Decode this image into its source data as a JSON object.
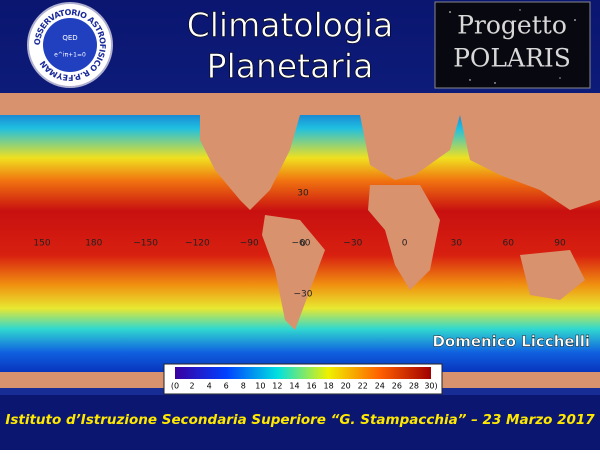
{
  "header": {
    "title_lines": [
      "Climatologia",
      "Planetaria"
    ],
    "logo": {
      "ring_text": "OSSERVATORIO ASTROFISICO R.P.FEYMAN",
      "center_text": "QED",
      "formula": "e^iπ+1=0"
    },
    "badge_lines": [
      "Progetto",
      "POLARIS"
    ]
  },
  "map": {
    "longitude_labels": [
      "150",
      "180",
      "−150",
      "−120",
      "−90",
      "−60",
      "−30",
      "0",
      "30",
      "60",
      "90"
    ],
    "latitude_labels": [
      "30",
      "0",
      "−30"
    ],
    "colorbar_labels": [
      "(0",
      "2",
      "4",
      "6",
      "8",
      "10",
      "12",
      "14",
      "16",
      "18",
      "20",
      "22",
      "24",
      "26",
      "28",
      "30)"
    ]
  },
  "author": "Domenico Licchelli",
  "footer": "Istituto d’Istruzione Secondaria Superiore “G. Stampacchia” – 23 Marzo 2017"
}
